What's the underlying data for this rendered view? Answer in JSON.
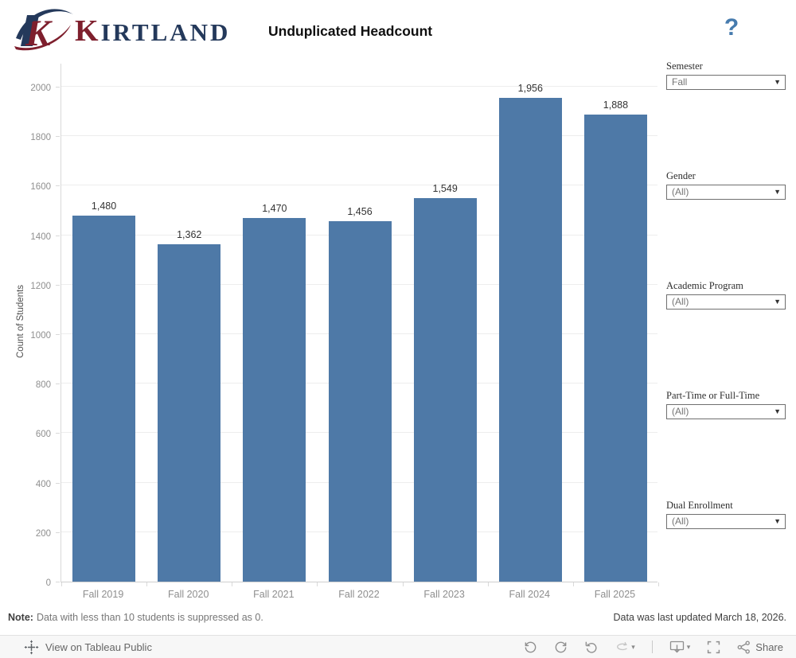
{
  "header": {
    "brand_initial": "K",
    "brand_rest": "IRTLAND",
    "title": "Unduplicated Headcount",
    "help": "?"
  },
  "chart_data": {
    "type": "bar",
    "title": "Unduplicated Headcount",
    "categories": [
      "Fall 2019",
      "Fall 2020",
      "Fall 2021",
      "Fall 2022",
      "Fall 2023",
      "Fall 2024",
      "Fall 2025"
    ],
    "values": [
      1480,
      1362,
      1470,
      1456,
      1549,
      1956,
      1888
    ],
    "value_labels": [
      "1,480",
      "1,362",
      "1,470",
      "1,456",
      "1,549",
      "1,956",
      "1,888"
    ],
    "xlabel": "",
    "ylabel": "Count of Students",
    "ylim": [
      0,
      2000
    ],
    "ytick_step": 200,
    "bar_color": "#4e79a7",
    "grid": true,
    "legend": "none"
  },
  "filters": [
    {
      "label": "Semester",
      "value": "Fall"
    },
    {
      "label": "Gender",
      "value": "(All)"
    },
    {
      "label": "Academic Program",
      "value": "(All)"
    },
    {
      "label": "Part-Time or Full-Time",
      "value": "(All)"
    },
    {
      "label": "Dual Enrollment",
      "value": "(All)"
    }
  ],
  "footer": {
    "note_label": "Note:",
    "note_text": "Data with less than 10 students is suppressed as 0.",
    "updated_text": "Data was last updated March 18, 2026."
  },
  "toolbar": {
    "view_label": "View on Tableau Public",
    "share_label": "Share",
    "caret": "▾"
  }
}
